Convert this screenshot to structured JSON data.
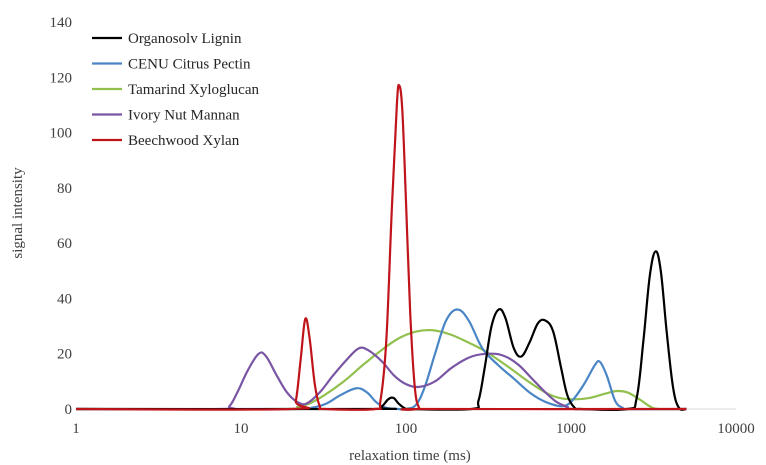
{
  "chart_data": {
    "type": "line",
    "title": "",
    "xlabel": "relaxation time (ms)",
    "ylabel": "signal intensity",
    "x_scale": "log",
    "xlim": [
      1,
      10000
    ],
    "ylim": [
      0,
      140
    ],
    "x_ticks": [
      {
        "value": 1,
        "label": "1"
      },
      {
        "value": 10,
        "label": "10"
      },
      {
        "value": 100,
        "label": "100"
      },
      {
        "value": 1000,
        "label": "1000"
      },
      {
        "value": 10000,
        "label": "10000"
      }
    ],
    "y_ticks": [
      {
        "value": 0,
        "label": "0"
      },
      {
        "value": 20,
        "label": "20"
      },
      {
        "value": 40,
        "label": "40"
      },
      {
        "value": 60,
        "label": "60"
      },
      {
        "value": 80,
        "label": "80"
      },
      {
        "value": 100,
        "label": "100"
      },
      {
        "value": 120,
        "label": "120"
      },
      {
        "value": 140,
        "label": "140"
      }
    ],
    "grid": false,
    "legend_position": "top-left",
    "series": [
      {
        "name": "Organosolv Lignin",
        "color": "#000000",
        "points": [
          [
            1,
            0
          ],
          [
            60,
            0
          ],
          [
            70,
            0.5
          ],
          [
            78,
            3.5
          ],
          [
            84,
            4
          ],
          [
            90,
            2
          ],
          [
            98,
            0.3
          ],
          [
            105,
            0
          ],
          [
            250,
            0
          ],
          [
            275,
            3
          ],
          [
            300,
            15
          ],
          [
            330,
            30
          ],
          [
            365,
            36
          ],
          [
            400,
            33
          ],
          [
            450,
            22
          ],
          [
            500,
            19
          ],
          [
            560,
            24
          ],
          [
            630,
            31
          ],
          [
            700,
            32
          ],
          [
            780,
            28
          ],
          [
            870,
            15
          ],
          [
            950,
            5
          ],
          [
            1050,
            0.5
          ],
          [
            1150,
            0
          ],
          [
            2200,
            0
          ],
          [
            2500,
            4
          ],
          [
            2750,
            25
          ],
          [
            3000,
            48
          ],
          [
            3250,
            57
          ],
          [
            3500,
            50
          ],
          [
            3800,
            28
          ],
          [
            4150,
            8
          ],
          [
            4500,
            0.5
          ],
          [
            5000,
            0
          ]
        ]
      },
      {
        "name": "CENU Citrus Pectin",
        "color": "#4a86c5",
        "points": [
          [
            1,
            0
          ],
          [
            20,
            0
          ],
          [
            27,
            0.5
          ],
          [
            33,
            2
          ],
          [
            40,
            5
          ],
          [
            50,
            7.5
          ],
          [
            58,
            6
          ],
          [
            66,
            2.5
          ],
          [
            75,
            0.5
          ],
          [
            90,
            0
          ],
          [
            100,
            0
          ],
          [
            115,
            1.5
          ],
          [
            130,
            8
          ],
          [
            150,
            20
          ],
          [
            175,
            32
          ],
          [
            205,
            36
          ],
          [
            240,
            32
          ],
          [
            290,
            22
          ],
          [
            360,
            16
          ],
          [
            450,
            11
          ],
          [
            560,
            6
          ],
          [
            650,
            3.5
          ],
          [
            740,
            2
          ],
          [
            860,
            1
          ],
          [
            950,
            1.5
          ],
          [
            1050,
            4
          ],
          [
            1200,
            9
          ],
          [
            1400,
            16
          ],
          [
            1500,
            17
          ],
          [
            1650,
            12
          ],
          [
            1850,
            3
          ],
          [
            2050,
            0.5
          ],
          [
            2250,
            0
          ],
          [
            5000,
            0
          ]
        ]
      },
      {
        "name": "Tamarind Xyloglucan",
        "color": "#92c04e",
        "points": [
          [
            1,
            0
          ],
          [
            19,
            0
          ],
          [
            22,
            0.8
          ],
          [
            26,
            2
          ],
          [
            32,
            5
          ],
          [
            42,
            10
          ],
          [
            55,
            16
          ],
          [
            70,
            21
          ],
          [
            90,
            25.5
          ],
          [
            115,
            28
          ],
          [
            145,
            28.5
          ],
          [
            185,
            27
          ],
          [
            240,
            24
          ],
          [
            300,
            21
          ],
          [
            400,
            16
          ],
          [
            550,
            10
          ],
          [
            700,
            6
          ],
          [
            850,
            4
          ],
          [
            1050,
            3.5
          ],
          [
            1300,
            4
          ],
          [
            1600,
            5.5
          ],
          [
            1900,
            6.5
          ],
          [
            2200,
            6
          ],
          [
            2600,
            3.5
          ],
          [
            3000,
            1
          ],
          [
            3400,
            0
          ],
          [
            5000,
            0
          ]
        ]
      },
      {
        "name": "Ivory Nut Mannan",
        "color": "#7a55a3",
        "points": [
          [
            1,
            0
          ],
          [
            7.5,
            0
          ],
          [
            8.5,
            1
          ],
          [
            9.5,
            6
          ],
          [
            11,
            14
          ],
          [
            12.8,
            20
          ],
          [
            14.2,
            19
          ],
          [
            16.5,
            12
          ],
          [
            19,
            6
          ],
          [
            22,
            2.5
          ],
          [
            25,
            2
          ],
          [
            30,
            6
          ],
          [
            36,
            12
          ],
          [
            44,
            18
          ],
          [
            52,
            22
          ],
          [
            60,
            21
          ],
          [
            72,
            17
          ],
          [
            85,
            12
          ],
          [
            100,
            9
          ],
          [
            120,
            8
          ],
          [
            150,
            10
          ],
          [
            190,
            15
          ],
          [
            250,
            19
          ],
          [
            330,
            20
          ],
          [
            400,
            19
          ],
          [
            480,
            16
          ],
          [
            580,
            11
          ],
          [
            700,
            6
          ],
          [
            820,
            2.5
          ],
          [
            950,
            0.8
          ],
          [
            1100,
            0
          ],
          [
            5000,
            0
          ]
        ]
      },
      {
        "name": "Beechwood Xylan",
        "color": "#c0141b",
        "points": [
          [
            1,
            0
          ],
          [
            20,
            0
          ],
          [
            21.5,
            3
          ],
          [
            23,
            18
          ],
          [
            24.5,
            32.5
          ],
          [
            26,
            26
          ],
          [
            28,
            9
          ],
          [
            30,
            1
          ],
          [
            32,
            0
          ],
          [
            65,
            0
          ],
          [
            70,
            3
          ],
          [
            76,
            25
          ],
          [
            82,
            72
          ],
          [
            88,
            110
          ],
          [
            91,
            117
          ],
          [
            95,
            108
          ],
          [
            100,
            75
          ],
          [
            106,
            35
          ],
          [
            113,
            8
          ],
          [
            120,
            0.5
          ],
          [
            128,
            0
          ],
          [
            5000,
            0
          ]
        ]
      }
    ]
  }
}
